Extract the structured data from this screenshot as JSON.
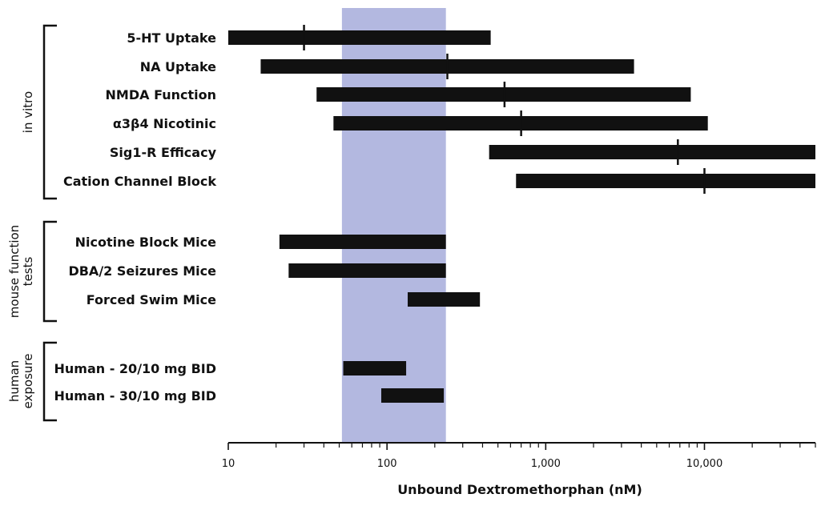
{
  "chart_data": {
    "type": "range-bar",
    "xlabel": "Unbound Dextromethorphan (nM)",
    "x_scale": "log",
    "xlim": [
      10,
      50000
    ],
    "x_ticks": [
      {
        "value": 10,
        "label": "10"
      },
      {
        "value": 100,
        "label": "100"
      },
      {
        "value": 1000,
        "label": "1,000"
      },
      {
        "value": 10000,
        "label": "10,000"
      }
    ],
    "shaded_band": {
      "from": 52,
      "to": 235,
      "color": "#b3b8e0"
    },
    "bar_color": "#111111",
    "groups": [
      {
        "label": [
          "in vitro"
        ],
        "rows": [
          {
            "label": "5-HT Uptake",
            "min": 10,
            "max": 450,
            "marker": 30
          },
          {
            "label": "NA Uptake",
            "min": 16,
            "max": 3600,
            "marker": 240
          },
          {
            "label": "NMDA Function",
            "min": 36,
            "max": 8200,
            "marker": 550
          },
          {
            "label": "α3β4 Nicotinic",
            "min": 46,
            "max": 10500,
            "marker": 700
          },
          {
            "label": "Sig1-R Efficacy",
            "min": 440,
            "max": 50000,
            "marker": 6800
          },
          {
            "label": "Cation Channel Block",
            "min": 650,
            "max": 50000,
            "marker": 10000
          }
        ]
      },
      {
        "label": [
          "mouse function",
          "tests"
        ],
        "rows": [
          {
            "label": "Nicotine Block Mice",
            "min": 21,
            "max": 235
          },
          {
            "label": "DBA/2 Seizures Mice",
            "min": 24,
            "max": 235
          },
          {
            "label": "Forced Swim Mice",
            "min": 135,
            "max": 385
          }
        ]
      },
      {
        "label": [
          "human",
          "exposure"
        ],
        "rows": [
          {
            "label": "Human - 20/10 mg BID",
            "min": 53,
            "max": 132
          },
          {
            "label": "Human - 30/10 mg BID",
            "min": 92,
            "max": 228
          }
        ]
      }
    ]
  }
}
